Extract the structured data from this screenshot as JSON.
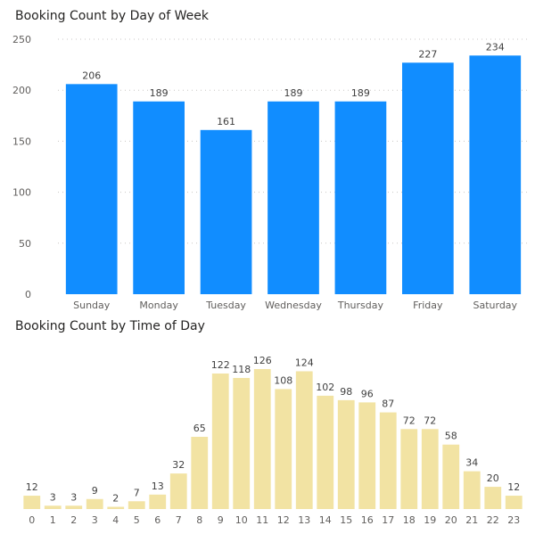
{
  "chart_data": [
    {
      "type": "bar",
      "title": "Booking Count by Day of Week",
      "categories": [
        "Sunday",
        "Monday",
        "Tuesday",
        "Wednesday",
        "Thursday",
        "Friday",
        "Saturday"
      ],
      "values": [
        206,
        189,
        161,
        189,
        189,
        227,
        234
      ],
      "xlabel": "",
      "ylabel": "",
      "ylim": [
        0,
        250
      ],
      "yticks": [
        0,
        50,
        100,
        150,
        200,
        250
      ],
      "grid": true,
      "data_labels": true,
      "bar_color": "#118dff"
    },
    {
      "type": "bar",
      "title": "Booking Count by Time of Day",
      "categories": [
        "0",
        "1",
        "2",
        "3",
        "4",
        "5",
        "6",
        "7",
        "8",
        "9",
        "10",
        "11",
        "12",
        "13",
        "14",
        "15",
        "16",
        "17",
        "18",
        "19",
        "20",
        "21",
        "22",
        "23"
      ],
      "values": [
        12,
        3,
        3,
        9,
        2,
        7,
        13,
        32,
        65,
        122,
        118,
        126,
        108,
        124,
        102,
        98,
        96,
        87,
        72,
        72,
        58,
        34,
        20,
        12
      ],
      "xlabel": "",
      "ylabel": "",
      "ylim": [
        0,
        130
      ],
      "grid": false,
      "data_labels": true,
      "bar_color": "#f2e3a3"
    }
  ]
}
